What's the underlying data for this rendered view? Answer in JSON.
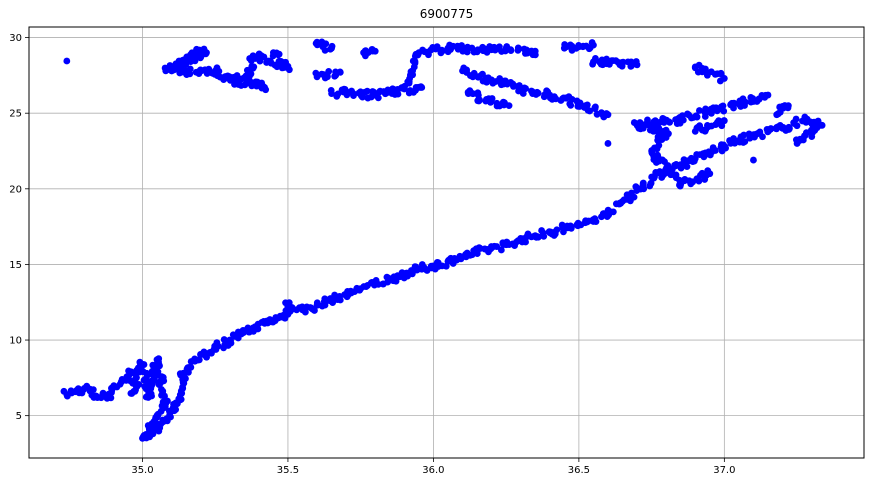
{
  "chart_data": {
    "type": "scatter",
    "title": "6900775",
    "xlabel": "",
    "ylabel": "",
    "xlim": [
      34.61,
      37.48
    ],
    "ylim": [
      2.2,
      30.7
    ],
    "xticks": [
      35.0,
      35.5,
      36.0,
      36.5,
      37.0
    ],
    "yticks": [
      5,
      10,
      15,
      20,
      25,
      30
    ],
    "xtick_labels": [
      "35.0",
      "35.5",
      "36.0",
      "36.5",
      "37.0"
    ],
    "ytick_labels": [
      "5",
      "10",
      "15",
      "20",
      "25",
      "30"
    ],
    "grid": true,
    "marker_color": "#0000ff",
    "series": [
      {
        "points": [
          [
            34.74,
            28.45
          ],
          [
            34.74,
            6.4
          ],
          [
            34.8,
            6.8
          ],
          [
            34.84,
            6.3
          ],
          [
            34.88,
            6.3
          ],
          [
            34.9,
            6.9
          ],
          [
            34.93,
            7.3
          ],
          [
            34.96,
            7.8
          ],
          [
            34.97,
            6.6
          ],
          [
            35.0,
            8.4
          ],
          [
            35.02,
            6.2
          ],
          [
            35.05,
            8.7
          ],
          [
            35.08,
            5.8
          ],
          [
            35.0,
            3.5
          ],
          [
            35.04,
            4.0
          ],
          [
            35.07,
            4.6
          ],
          [
            35.1,
            5.3
          ],
          [
            35.12,
            5.8
          ],
          [
            35.14,
            7.8
          ],
          [
            35.18,
            8.6
          ],
          [
            35.22,
            9.1
          ],
          [
            35.26,
            9.6
          ],
          [
            35.3,
            10.0
          ],
          [
            35.34,
            10.4
          ],
          [
            35.38,
            10.8
          ],
          [
            35.42,
            11.1
          ],
          [
            35.46,
            11.4
          ],
          [
            35.5,
            11.7
          ],
          [
            35.5,
            12.4
          ],
          [
            35.55,
            12.0
          ],
          [
            35.6,
            12.3
          ],
          [
            35.65,
            12.7
          ],
          [
            35.7,
            13.0
          ],
          [
            35.75,
            13.4
          ],
          [
            35.8,
            13.7
          ],
          [
            35.85,
            14.0
          ],
          [
            35.9,
            14.4
          ],
          [
            35.95,
            14.7
          ],
          [
            36.0,
            14.9
          ],
          [
            36.05,
            15.2
          ],
          [
            36.1,
            15.5
          ],
          [
            36.15,
            15.8
          ],
          [
            36.2,
            16.1
          ],
          [
            36.25,
            16.3
          ],
          [
            36.3,
            16.6
          ],
          [
            36.35,
            16.9
          ],
          [
            36.4,
            17.1
          ],
          [
            36.45,
            17.4
          ],
          [
            36.5,
            17.6
          ],
          [
            36.55,
            17.9
          ],
          [
            36.6,
            18.4
          ],
          [
            36.64,
            19.0
          ],
          [
            36.68,
            19.6
          ],
          [
            36.72,
            20.2
          ],
          [
            36.76,
            20.8
          ],
          [
            36.8,
            21.2
          ],
          [
            36.85,
            21.6
          ],
          [
            36.9,
            22.0
          ],
          [
            36.95,
            22.4
          ],
          [
            37.0,
            22.8
          ],
          [
            37.05,
            23.2
          ],
          [
            37.1,
            23.5
          ],
          [
            37.15,
            23.8
          ],
          [
            37.2,
            24.0
          ],
          [
            37.28,
            24.6
          ],
          [
            37.33,
            24.2
          ],
          [
            37.25,
            23.0
          ],
          [
            37.1,
            21.9
          ],
          [
            36.95,
            21.0
          ],
          [
            36.85,
            20.3
          ],
          [
            36.75,
            22.5
          ],
          [
            36.8,
            23.7
          ],
          [
            36.7,
            24.2
          ],
          [
            36.85,
            24.6
          ],
          [
            36.95,
            25.1
          ],
          [
            37.05,
            25.6
          ],
          [
            37.15,
            26.2
          ],
          [
            36.6,
            24.9
          ],
          [
            36.5,
            25.6
          ],
          [
            36.4,
            26.2
          ],
          [
            36.3,
            26.6
          ],
          [
            36.2,
            27.2
          ],
          [
            36.1,
            27.8
          ],
          [
            36.55,
            28.4
          ],
          [
            36.7,
            28.2
          ],
          [
            36.9,
            28.0
          ],
          [
            37.0,
            27.3
          ],
          [
            36.45,
            29.3
          ],
          [
            36.55,
            29.5
          ],
          [
            36.35,
            29.1
          ],
          [
            36.2,
            29.2
          ],
          [
            36.05,
            29.3
          ],
          [
            35.95,
            29.0
          ],
          [
            35.9,
            26.6
          ],
          [
            35.85,
            26.4
          ],
          [
            35.8,
            26.2
          ],
          [
            35.75,
            26.3
          ],
          [
            35.7,
            26.4
          ],
          [
            35.65,
            26.3
          ],
          [
            35.76,
            29.0
          ],
          [
            35.8,
            29.1
          ],
          [
            35.6,
            29.7
          ],
          [
            35.62,
            29.4
          ],
          [
            35.65,
            29.3
          ],
          [
            35.45,
            29.0
          ],
          [
            35.5,
            28.1
          ],
          [
            35.38,
            28.8
          ],
          [
            35.36,
            27.3
          ],
          [
            35.42,
            26.7
          ],
          [
            35.3,
            27.4
          ],
          [
            35.33,
            26.9
          ],
          [
            35.25,
            27.8
          ],
          [
            35.2,
            27.8
          ],
          [
            35.14,
            27.8
          ],
          [
            35.1,
            27.8
          ],
          [
            35.18,
            29.0
          ],
          [
            35.22,
            29.0
          ],
          [
            35.08,
            27.8
          ],
          [
            35.6,
            27.4
          ],
          [
            35.68,
            27.7
          ],
          [
            35.92,
            26.5
          ],
          [
            35.96,
            26.7
          ],
          [
            36.12,
            26.3
          ],
          [
            36.18,
            25.8
          ],
          [
            36.26,
            25.5
          ],
          [
            36.6,
            23.0
          ],
          [
            36.9,
            23.8
          ],
          [
            37.0,
            24.5
          ],
          [
            37.18,
            24.9
          ],
          [
            37.22,
            25.5
          ]
        ]
      }
    ]
  }
}
